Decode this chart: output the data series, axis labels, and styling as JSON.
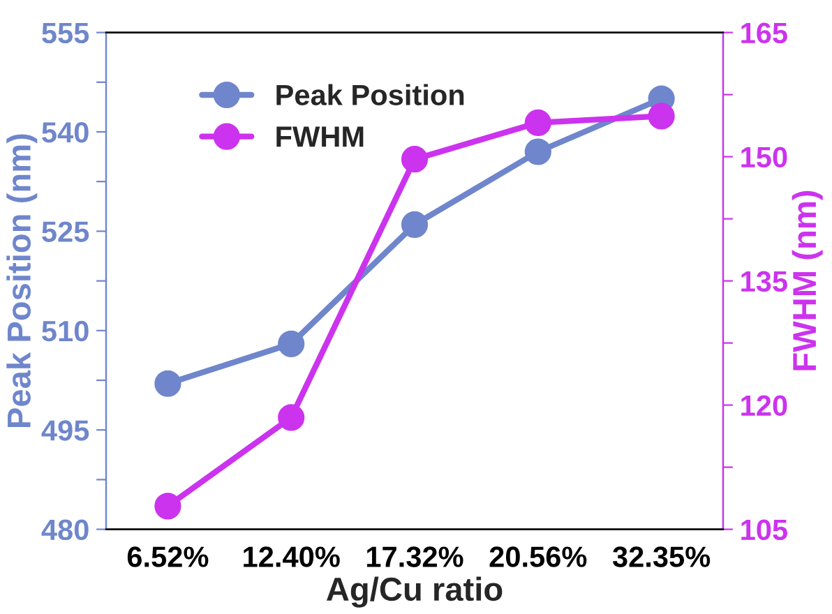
{
  "chart_data": {
    "type": "line",
    "xlabel": "Ag/Cu ratio",
    "ylabel": "Peak Position (nm)",
    "y2label": "FWHM (nm)",
    "categories": [
      "6.52%",
      "12.40%",
      "17.32%",
      "20.56%",
      "32.35%"
    ],
    "series": [
      {
        "name": "Peak Position",
        "color": "#6f86cc",
        "values": [
          502,
          508,
          526,
          537,
          545
        ]
      },
      {
        "name": "FWHM",
        "color": "#cc33ee",
        "axis": "y2",
        "values": [
          107.8,
          118.5,
          149.7,
          154.1,
          154.9
        ]
      }
    ],
    "ylim": [
      480,
      555
    ],
    "yticks": [
      480,
      {
        "value": 487.5,
        "label": null
      },
      495,
      {
        "value": 502.5,
        "label": null
      },
      510,
      {
        "value": 517.5,
        "label": null
      },
      525,
      {
        "value": 532.5,
        "label": null
      },
      540,
      {
        "value": 547.5,
        "label": null
      },
      555
    ],
    "y2lim": [
      105,
      165
    ],
    "y2ticks": [
      105,
      {
        "value": 112.5,
        "label": null
      },
      120,
      {
        "value": 127.5,
        "label": null
      },
      135,
      {
        "value": 142.5,
        "label": null
      },
      150,
      {
        "value": 157.5,
        "label": null
      },
      165
    ],
    "marker": "circle",
    "line_style": "solid",
    "legend": "top left",
    "grid": false
  }
}
